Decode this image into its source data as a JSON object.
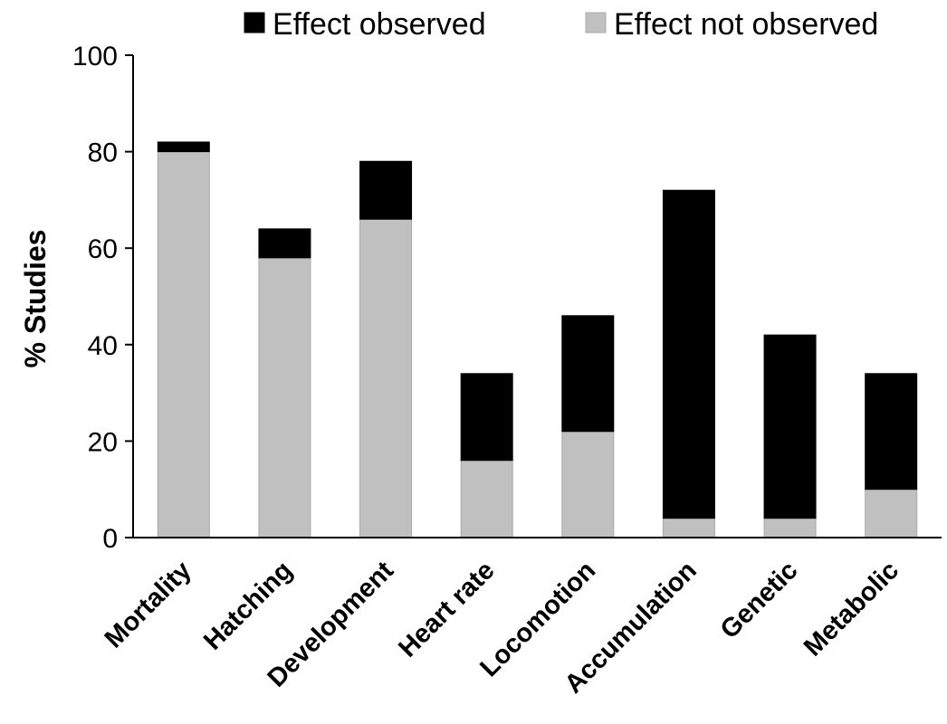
{
  "chart_data": {
    "type": "bar",
    "stacked": true,
    "title": "",
    "xlabel": "",
    "ylabel": "% Studies",
    "ylim": [
      0,
      100
    ],
    "yticks": [
      0,
      20,
      40,
      60,
      80,
      100
    ],
    "grid": false,
    "legend_position": "top",
    "categories": [
      "Mortality",
      "Hatching",
      "Development",
      "Heart rate",
      "Locomotion",
      "Accumulation",
      "Genetic",
      "Metabolic"
    ],
    "series": [
      {
        "name": "Effect not observed",
        "color": "#c0c0c0",
        "values": [
          80,
          58,
          66,
          16,
          22,
          4,
          4,
          10
        ]
      },
      {
        "name": "Effect observed",
        "color": "#000000",
        "values": [
          2,
          6,
          12,
          18,
          24,
          68,
          38,
          24
        ]
      }
    ],
    "legend_order": [
      "Effect observed",
      "Effect not observed"
    ]
  }
}
